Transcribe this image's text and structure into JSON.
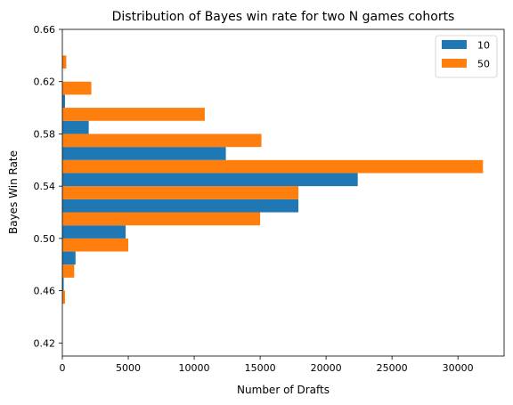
{
  "chart_data": {
    "type": "bar",
    "orientation": "horizontal",
    "title": "Distribution of Bayes win rate for two N games cohorts",
    "xlabel": "Number of Drafts",
    "ylabel": "Bayes Win Rate",
    "xlim": [
      0,
      33500
    ],
    "ylim": [
      0.41,
      0.66
    ],
    "xticks": [
      0,
      5000,
      10000,
      15000,
      20000,
      25000,
      30000
    ],
    "xtick_labels": [
      "0",
      "5000",
      "10000",
      "15000",
      "20000",
      "25000",
      "30000"
    ],
    "yticks": [
      0.42,
      0.46,
      0.5,
      0.54,
      0.58,
      0.62,
      0.66
    ],
    "ytick_labels": [
      "0.42",
      "0.46",
      "0.50",
      "0.54",
      "0.58",
      "0.62",
      "0.66"
    ],
    "bin_edges": [
      0.44,
      0.46,
      0.48,
      0.5,
      0.52,
      0.54,
      0.56,
      0.58,
      0.6,
      0.62,
      0.64
    ],
    "grid": false,
    "legend": "top-right",
    "series": [
      {
        "name": "10",
        "color": "#1f77b4",
        "values": [
          0,
          100,
          1000,
          4800,
          17900,
          22400,
          12400,
          2000,
          200,
          0
        ]
      },
      {
        "name": "50",
        "color": "#ff7f0e",
        "values": [
          200,
          900,
          5000,
          15000,
          17900,
          31900,
          15100,
          10800,
          2200,
          300
        ]
      }
    ]
  }
}
